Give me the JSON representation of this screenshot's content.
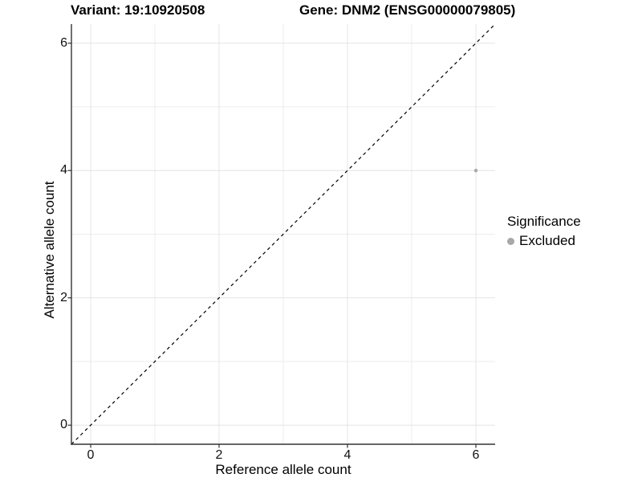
{
  "titles": {
    "variant": "Variant: 19:10920508",
    "gene": "Gene: DNM2 (ENSG00000079805)"
  },
  "legend": {
    "title": "Significance",
    "items": [
      {
        "label": "Excluded",
        "color": "#a8a8a8"
      }
    ]
  },
  "colors": {
    "background": "#ffffff",
    "grid_major": "#e4e4e4",
    "grid_minor": "#ececec",
    "axis_line": "#333333",
    "tick_mark": "#333333",
    "reference_line": "#000000",
    "point_excluded": "#a8a8a8"
  },
  "chart_data": {
    "type": "scatter",
    "title_left": "Variant: 19:10920508",
    "title_right": "Gene: DNM2 (ENSG00000079805)",
    "xlabel": "Reference allele count",
    "ylabel": "Alternative allele count",
    "xlim": [
      -0.3,
      6.3
    ],
    "ylim": [
      -0.3,
      6.3
    ],
    "x_ticks": [
      0,
      2,
      4,
      6
    ],
    "y_ticks": [
      0,
      2,
      4,
      6
    ],
    "x_minor": [
      1,
      3,
      5
    ],
    "y_minor": [
      1,
      3,
      5
    ],
    "grid": "major+minor",
    "legend_position": "right",
    "legend_title": "Significance",
    "series": [
      {
        "name": "Excluded",
        "color": "#a8a8a8",
        "points": [
          {
            "x": 6,
            "y": 4
          }
        ]
      }
    ],
    "reference_line": {
      "type": "identity",
      "label": "y = x",
      "style": "dashed",
      "color": "#000000"
    }
  }
}
